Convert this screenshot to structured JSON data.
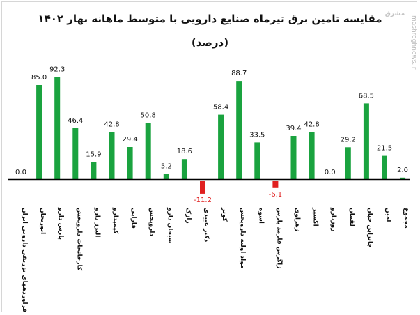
{
  "chart_data": {
    "type": "bar",
    "title": "مقایسه تامین برق تیرماه صنایع دارویی  با متوسط ماهانه بهار ۱۴۰۲",
    "subtitle": "(درصد)",
    "xlabel": "",
    "ylabel": "",
    "ylim": [
      -15,
      100
    ],
    "grid": false,
    "categories": [
      "فراوردههای تزریقی دارویی ایران",
      "ابوریحان",
      "پارس دارو",
      "کارخانجات داروپخش",
      "البرز دارو",
      "کیمیدارو",
      "فارابی",
      "داروپخش",
      "سبحان دارو",
      "رازک",
      "دکتر عبیدی",
      "کوثر",
      "مواد اولیه داروپخش",
      "اسوه",
      "زاگرس فارمد پارس",
      "زهراوی",
      "اکسیر",
      "روزدارو",
      "لقمان",
      "جابرابن حیان",
      "امین",
      "مجموع"
    ],
    "values": [
      0.0,
      85.0,
      92.3,
      46.4,
      15.9,
      42.8,
      29.4,
      50.8,
      5.2,
      18.6,
      -11.2,
      58.4,
      88.7,
      33.5,
      -6.1,
      39.4,
      42.8,
      0.0,
      29.2,
      68.5,
      21.5,
      2.0
    ],
    "value_labels": [
      "0.0",
      "85.0",
      "92.3",
      "46.4",
      "15.9",
      "42.8",
      "29.4",
      "50.8",
      "5.2",
      "18.6",
      "-11.2",
      "58.4",
      "88.7",
      "33.5",
      "-6.1",
      "39.4",
      "42.8",
      "0.0",
      "29.2",
      "68.5",
      "21.5",
      "2.0"
    ],
    "colors": {
      "positive": "#1aa33f",
      "negative": "#e02020",
      "axis": "#000000"
    }
  },
  "watermark": {
    "site": "mashreghnews.ir",
    "logo": "مشرق"
  }
}
